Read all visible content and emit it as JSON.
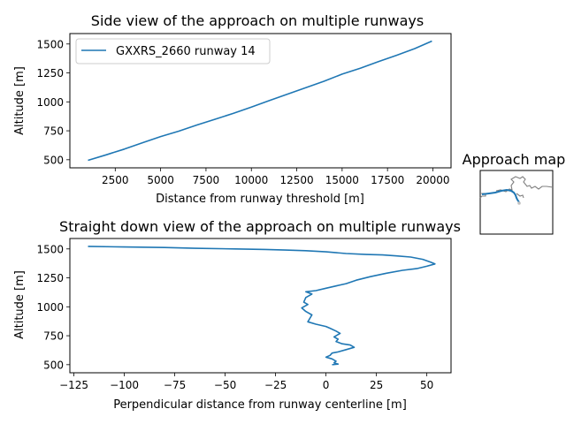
{
  "chart_data": [
    {
      "type": "line",
      "title": "Side view of the approach on multiple runways",
      "xlabel": "Distance from runway threshold [m]",
      "ylabel": "Altitude [m]",
      "xlim": [
        0,
        21000
      ],
      "ylim": [
        430,
        1590
      ],
      "xticks": [
        2500,
        5000,
        7500,
        10000,
        12500,
        15000,
        17500,
        20000
      ],
      "xtick_labels": [
        "2500",
        "5000",
        "7500",
        "10000",
        "12500",
        "15000",
        "17500",
        "20000"
      ],
      "yticks": [
        500,
        750,
        1000,
        1250,
        1500
      ],
      "ytick_labels": [
        "500",
        "750",
        "1000",
        "1250",
        "1500"
      ],
      "grid": false,
      "legend": "upper-left",
      "series": [
        {
          "name": "GXXRS_2660 runway 14",
          "color": "#1f77b4",
          "x": [
            1000,
            2000,
            3000,
            4000,
            5000,
            6000,
            7000,
            8000,
            9000,
            10000,
            11000,
            12000,
            13000,
            14000,
            15000,
            16000,
            17000,
            18000,
            19000,
            19950
          ],
          "y": [
            495,
            542,
            592,
            647,
            700,
            747,
            800,
            850,
            900,
            955,
            1012,
            1067,
            1122,
            1178,
            1240,
            1290,
            1348,
            1402,
            1460,
            1525
          ]
        }
      ]
    },
    {
      "type": "line",
      "title": "Straight down view of the approach on multiple runways",
      "xlabel": "Perpendicular distance from runway centerline [m]",
      "ylabel": "Altitude [m]",
      "xlim": [
        -127,
        62
      ],
      "ylim": [
        430,
        1590
      ],
      "xticks": [
        -125,
        -100,
        -75,
        -50,
        -25,
        0,
        25,
        50
      ],
      "xtick_labels": [
        "−125",
        "−100",
        "−75",
        "−50",
        "−25",
        "0",
        "25",
        "50"
      ],
      "yticks": [
        500,
        750,
        1000,
        1250,
        1500
      ],
      "ytick_labels": [
        "500",
        "750",
        "1000",
        "1250",
        "1500"
      ],
      "grid": false,
      "series": [
        {
          "color": "#1f77b4",
          "x": [
            -118,
            -100,
            -80,
            -65,
            -45,
            -30,
            -20,
            -10,
            0,
            10,
            20,
            28,
            35,
            42,
            48,
            52,
            54,
            50,
            45,
            38,
            30,
            22,
            15,
            10,
            5,
            0,
            -5,
            -10,
            -7,
            -10,
            -11,
            -9,
            -12,
            -10,
            -7,
            -8,
            -9,
            -5,
            0,
            2,
            5,
            7,
            4,
            6,
            5,
            8,
            12,
            14,
            10,
            6,
            3,
            2,
            0,
            3,
            5,
            4,
            6,
            3
          ],
          "y": [
            1522,
            1517,
            1512,
            1505,
            1500,
            1495,
            1490,
            1485,
            1475,
            1460,
            1452,
            1448,
            1440,
            1430,
            1410,
            1385,
            1370,
            1350,
            1330,
            1315,
            1290,
            1260,
            1230,
            1200,
            1180,
            1160,
            1140,
            1130,
            1110,
            1080,
            1040,
            1020,
            990,
            960,
            930,
            900,
            870,
            850,
            830,
            815,
            790,
            770,
            740,
            720,
            700,
            680,
            670,
            650,
            630,
            610,
            600,
            580,
            565,
            550,
            530,
            515,
            505,
            500
          ]
        }
      ]
    }
  ],
  "inset": {
    "title": "Approach map",
    "land_color": "#808080",
    "track_color": "#1f77b4",
    "endpoint_color": "#c0c0c0"
  }
}
